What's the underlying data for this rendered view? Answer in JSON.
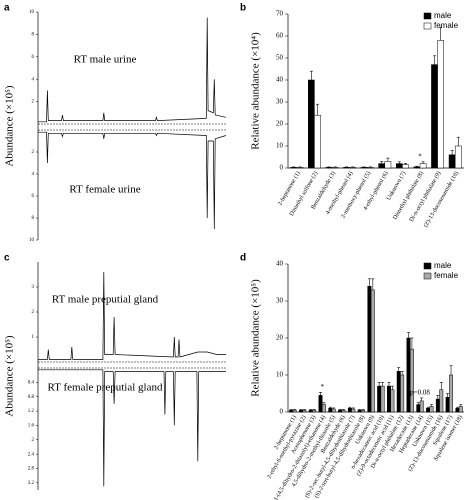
{
  "chart_data": [
    {
      "type": "line",
      "label": "a",
      "ylabel": "Abundance (×10⁵)",
      "xlim": [
        0,
        40
      ],
      "ylim": [
        0,
        10
      ],
      "yticks": [
        2,
        4,
        6,
        8,
        10
      ],
      "y2lim": [
        0,
        10
      ],
      "y2ticks": [
        2,
        4,
        6,
        8,
        10
      ],
      "series": [
        {
          "name": "RT male urine",
          "color": "#000000",
          "x": [
            0,
            1.8,
            2,
            2.2,
            5,
            5.2,
            5.4,
            10,
            13.8,
            14,
            14.2,
            20,
            25,
            25.2,
            25.4,
            35.8,
            36,
            36.2,
            37.3,
            37.5,
            37.7,
            40
          ],
          "values": [
            0.2,
            0.2,
            3,
            0.3,
            0.3,
            0.8,
            0.3,
            0.3,
            0.3,
            1.0,
            0.3,
            0.3,
            0.3,
            0.6,
            0.3,
            0.5,
            9.5,
            1.2,
            1,
            4,
            0.8,
            0.6
          ]
        },
        {
          "name": "RT female urine",
          "color": "#000000",
          "axis": "y2",
          "x": [
            0,
            1.8,
            2,
            2.2,
            5,
            5.2,
            5.4,
            13.8,
            14,
            14.2,
            25,
            25.2,
            25.4,
            35.8,
            36,
            36.2,
            37.3,
            37.5,
            37.7,
            40
          ],
          "values": [
            0.2,
            0.2,
            3,
            0.3,
            0.3,
            0.6,
            0.3,
            0.3,
            0.8,
            0.3,
            0.3,
            0.5,
            0.3,
            0.5,
            8,
            1,
            1,
            9,
            0.8,
            0.5
          ]
        }
      ]
    },
    {
      "type": "bar",
      "label": "b",
      "ylabel": "Relative abundance (×10⁴)",
      "ylim": [
        0,
        70
      ],
      "yticks": [
        0,
        10,
        20,
        30,
        40,
        50,
        60,
        70
      ],
      "categories": [
        "2-heptanone (1)",
        "Dimethyl sulfone (2)",
        "Benzaldehyde (3)",
        "4-methyl-phenol (4)",
        "2-methoxy-phenol (5)",
        "4-ethyl-phenol (6)",
        "Unknown (7)",
        "Dimethyl phthalate (8)",
        "Di-n-octyl phthalate (9)",
        "(Z)-13-docosenamide (10)"
      ],
      "series": [
        {
          "name": "male",
          "color": "#000000",
          "values": [
            0.3,
            40,
            0.3,
            0.3,
            0.3,
            2,
            2,
            0.5,
            47,
            6
          ],
          "errors": [
            0.2,
            4,
            0.2,
            0.2,
            0.2,
            1,
            0.8,
            0.3,
            4,
            2
          ]
        },
        {
          "name": "female",
          "color": "#ffffff",
          "values": [
            0.3,
            24,
            0.3,
            0.3,
            0.3,
            3,
            1.5,
            2,
            58,
            10
          ],
          "errors": [
            0.2,
            5,
            0.2,
            0.2,
            0.2,
            1.5,
            0.6,
            0.8,
            6,
            4
          ]
        }
      ],
      "annotations": [
        "*"
      ]
    },
    {
      "type": "line",
      "label": "c",
      "ylabel": "Abundance (×10⁵)",
      "xlim": [
        0,
        40
      ],
      "ylim": [
        0,
        4
      ],
      "yticks": [
        1,
        2,
        3
      ],
      "y2lim": [
        0,
        3.4
      ],
      "y2ticks": [
        0.4,
        0.8,
        1.2,
        1.6,
        2,
        2.4,
        2.8,
        3.2
      ],
      "series": [
        {
          "name": "RT male preputial gland",
          "color": "#000000",
          "x": [
            0,
            2,
            2.2,
            2.4,
            7,
            7.2,
            7.4,
            13.8,
            14,
            14.2,
            16,
            16.2,
            16.4,
            28.8,
            29,
            29.2,
            29.8,
            30,
            30.2,
            34,
            36,
            38,
            40
          ],
          "values": [
            0.1,
            0.1,
            0.5,
            0.1,
            0.1,
            0.6,
            0.1,
            0.1,
            3.6,
            0.3,
            0.3,
            1.8,
            0.3,
            0.2,
            1.0,
            0.2,
            0.2,
            0.9,
            0.2,
            0.4,
            0.4,
            0.3,
            0.3
          ]
        },
        {
          "name": "RT female preputial gland",
          "color": "#000000",
          "axis": "y2",
          "x": [
            0,
            13.8,
            14,
            14.2,
            16,
            16.2,
            16.4,
            26.8,
            27,
            27.2,
            28.8,
            29,
            29.2,
            33.8,
            34,
            34.2,
            36,
            40
          ],
          "values": [
            0.05,
            0.05,
            3.3,
            0.1,
            0.1,
            1.0,
            0.1,
            0.1,
            1.3,
            0.1,
            0.1,
            1.6,
            0.1,
            0.1,
            2.6,
            0.1,
            0.1,
            0.1
          ]
        }
      ]
    },
    {
      "type": "bar",
      "label": "d",
      "ylabel": "Relative abundance (×10⁵)",
      "ylim": [
        0,
        40
      ],
      "yticks": [
        0,
        10,
        20,
        30,
        40
      ],
      "categories": [
        "2-heptanone (1)",
        "2-ethyl-6-methyl-pyrazine (2)",
        "Acetophenone (3)",
        "1-(4,5-dihydro-2-thiazolyl)-ethanone (4)",
        "4,5-dihydro-2-methyl-thiazole (5)",
        "Benzaldehyde (6)",
        "(S)-2-sec-butyl-4,5-dihydrothiazole (7)",
        "(S)-2-tert-butyl-4,5-dihydrothiazole (8)",
        "Unknown (9)",
        "n-hexadecanoic acid (10)",
        "(Z)-9-octadecenoic acid (11)",
        "Di-n-octyl phthalate (12)",
        "Hexadecane (13)",
        "Heptadecane (14)",
        "Unknown (15)",
        "(Z)-13-docosenamide (16)",
        "Squalene (17)",
        "Squalene isomer (18)"
      ],
      "series": [
        {
          "name": "male",
          "color": "#000000",
          "values": [
            0.5,
            0.5,
            0.5,
            4.5,
            1,
            0.5,
            1,
            0.5,
            34,
            7,
            7,
            11,
            20,
            2,
            1,
            3.5,
            4,
            1
          ],
          "errors": [
            0.2,
            0.2,
            0.2,
            0.8,
            0.3,
            0.2,
            0.3,
            0.2,
            2,
            1,
            1,
            1,
            1.5,
            0.5,
            0.3,
            1,
            1,
            0.3
          ]
        },
        {
          "name": "female",
          "color": "#aaaaaa",
          "values": [
            0.5,
            0.5,
            0.5,
            2,
            0.8,
            0.5,
            0.8,
            0.5,
            33,
            7,
            6,
            10,
            17,
            3,
            1.5,
            6,
            10,
            1.5
          ],
          "errors": [
            0.2,
            0.2,
            0.2,
            0.5,
            0.3,
            0.2,
            0.3,
            0.2,
            3,
            1,
            1,
            1,
            3,
            0.8,
            0.5,
            2,
            2.5,
            0.5
          ]
        }
      ],
      "annotations": [
        "*",
        "p=0.08"
      ]
    }
  ]
}
